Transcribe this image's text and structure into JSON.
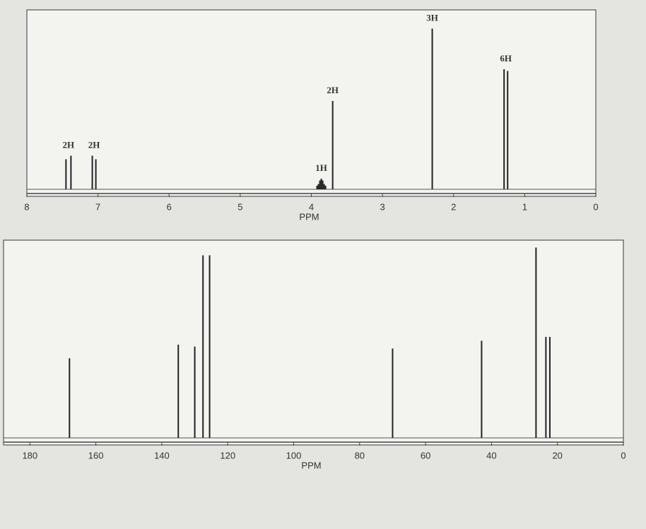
{
  "chart_data": [
    {
      "type": "spectrum",
      "xlabel": "PPM",
      "xlim": [
        8,
        0
      ],
      "xticks": [
        8,
        7,
        6,
        5,
        4,
        3,
        2,
        1,
        0
      ],
      "ylim": [
        0,
        100
      ],
      "color": "#222222",
      "groups": [
        {
          "label": "2H",
          "x": [
            7.45,
            7.38
          ],
          "values": [
            17,
            19
          ]
        },
        {
          "label": "2H",
          "x": [
            7.08,
            7.03
          ],
          "values": [
            19,
            17
          ]
        },
        {
          "label": "1H",
          "x": [
            3.92,
            3.9,
            3.88,
            3.86,
            3.84,
            3.82,
            3.8
          ],
          "values": [
            2,
            3,
            5,
            6,
            5,
            3,
            2
          ]
        },
        {
          "label": "2H",
          "x": [
            3.7
          ],
          "values": [
            50
          ]
        },
        {
          "label": "3H",
          "x": [
            2.3
          ],
          "values": [
            91
          ]
        },
        {
          "label": "6H",
          "x": [
            1.29,
            1.24
          ],
          "values": [
            68,
            67
          ]
        }
      ]
    },
    {
      "type": "spectrum",
      "xlabel": "PPM",
      "xlim": [
        188,
        0
      ],
      "xticks": [
        180,
        160,
        140,
        120,
        100,
        80,
        60,
        40,
        20,
        0
      ],
      "ylim": [
        0,
        100
      ],
      "color": "#222222",
      "groups": [
        {
          "x": [
            168,
            135,
            130,
            127.5,
            125.5,
            70,
            43,
            26.5,
            23.5,
            22.3
          ],
          "values": [
            41,
            48,
            47,
            94,
            94,
            46,
            50,
            98,
            52,
            52
          ]
        }
      ]
    }
  ]
}
